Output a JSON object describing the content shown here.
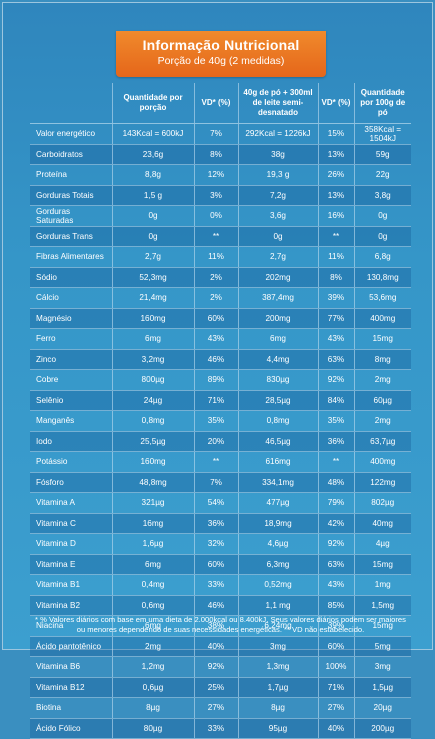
{
  "header": {
    "title": "Informação Nutricional",
    "subtitle": "Porção de 40g (2 medidas)"
  },
  "columns": [
    "",
    "Quantidade por porção",
    "VD* (%)",
    "40g de pó + 300ml de leite semi-desnatado",
    "VD* (%)",
    "Quantidade por 100g de pó"
  ],
  "rows": [
    [
      "Valor energético",
      "143Kcal = 600kJ",
      "7%",
      "292Kcal = 1226kJ",
      "15%",
      "358Kcal = 1504kJ"
    ],
    [
      "Carboidratos",
      "23,6g",
      "8%",
      "38g",
      "13%",
      "59g"
    ],
    [
      "Proteína",
      "8,8g",
      "12%",
      "19,3 g",
      "26%",
      "22g"
    ],
    [
      "Gorduras Totais",
      "1,5 g",
      "3%",
      "7,2g",
      "13%",
      "3,8g"
    ],
    [
      "Gorduras Saturadas",
      "0g",
      "0%",
      "3,6g",
      "16%",
      "0g"
    ],
    [
      "Gorduras Trans",
      "0g",
      "**",
      "0g",
      "**",
      "0g"
    ],
    [
      "Fibras Alimentares",
      "2,7g",
      "11%",
      "2,7g",
      "11%",
      "6,8g"
    ],
    [
      "Sódio",
      "52,3mg",
      "2%",
      "202mg",
      "8%",
      "130,8mg"
    ],
    [
      "Cálcio",
      "21,4mg",
      "2%",
      "387,4mg",
      "39%",
      "53,6mg"
    ],
    [
      "Magnésio",
      "160mg",
      "60%",
      "200mg",
      "77%",
      "400mg"
    ],
    [
      "Ferro",
      "6mg",
      "43%",
      "6mg",
      "43%",
      "15mg"
    ],
    [
      "Zinco",
      "3,2mg",
      "46%",
      "4,4mg",
      "63%",
      "8mg"
    ],
    [
      "Cobre",
      "800µg",
      "89%",
      "830µg",
      "92%",
      "2mg"
    ],
    [
      "Selênio",
      "24µg",
      "71%",
      "28,5µg",
      "84%",
      "60µg"
    ],
    [
      "Manganês",
      "0,8mg",
      "35%",
      "0,8mg",
      "35%",
      "2mg"
    ],
    [
      "Iodo",
      "25,5µg",
      "20%",
      "46,5µg",
      "36%",
      "63,7µg"
    ],
    [
      "Potássio",
      "160mg",
      "**",
      "616mg",
      "**",
      "400mg"
    ],
    [
      "Fósforo",
      "48,8mg",
      "7%",
      "334,1mg",
      "48%",
      "122mg"
    ],
    [
      "Vitamina A",
      "321µg",
      "54%",
      "477µg",
      "79%",
      "802µg"
    ],
    [
      "Vitamina C",
      "16mg",
      "36%",
      "18,9mg",
      "42%",
      "40mg"
    ],
    [
      "Vitamina D",
      "1,6µg",
      "32%",
      "4,6µg",
      "92%",
      "4µg"
    ],
    [
      "Vitamina E",
      "6mg",
      "60%",
      "6,3mg",
      "63%",
      "15mg"
    ],
    [
      "Vitamina B1",
      "0,4mg",
      "33%",
      "0,52mg",
      "43%",
      "1mg"
    ],
    [
      "Vitamina B2",
      "0,6mg",
      "46%",
      "1,1 mg",
      "85%",
      "1,5mg"
    ],
    [
      "Niacina",
      "6mg",
      "38%",
      "6,24mg",
      "39%",
      "15mg"
    ],
    [
      "Ácido pantotênico",
      "2mg",
      "40%",
      "3mg",
      "60%",
      "5mg"
    ],
    [
      "Vitamina B6",
      "1,2mg",
      "92%",
      "1,3mg",
      "100%",
      "3mg"
    ],
    [
      "Vitamina B12",
      "0,6µg",
      "25%",
      "1,7µg",
      "71%",
      "1,5µg"
    ],
    [
      "Biotina",
      "8µg",
      "27%",
      "8µg",
      "27%",
      "20µg"
    ],
    [
      "Ácido Fólico",
      "80µg",
      "33%",
      "95µg",
      "40%",
      "200µg"
    ]
  ],
  "footnote": "* % Valores diários com base em uma dieta de 2.000kcal ou 8.400kJ. Seus valores diários podem ser maiores ou menores dependendo de suas necessidades energéticas. ** VD não estabelecido."
}
